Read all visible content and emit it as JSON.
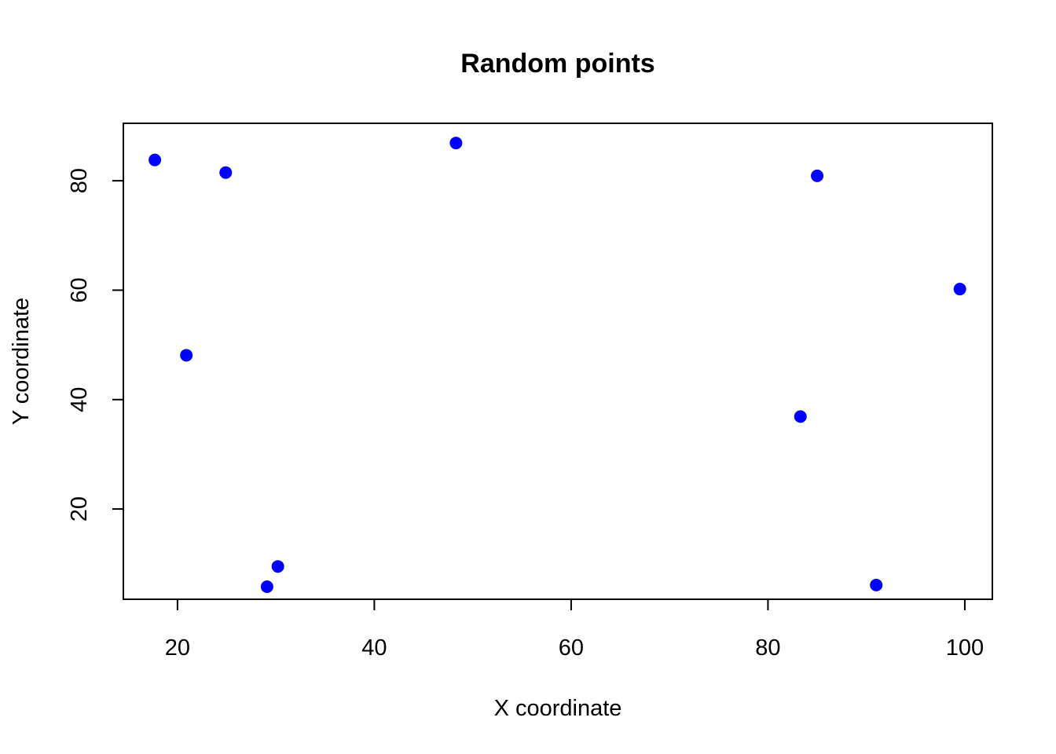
{
  "chart_data": {
    "type": "scatter",
    "title": "Random points",
    "xlabel": "X coordinate",
    "ylabel": "Y coordinate",
    "xlim": [
      14.5,
      102.8
    ],
    "ylim": [
      3.5,
      90.5
    ],
    "xticks": [
      20,
      40,
      60,
      80,
      100
    ],
    "yticks": [
      20,
      40,
      60,
      80
    ],
    "grid": false,
    "legend": "none",
    "marker_color": "#0000ff",
    "points": [
      {
        "x": 17.7,
        "y": 83.8
      },
      {
        "x": 24.9,
        "y": 81.5
      },
      {
        "x": 20.9,
        "y": 48.1
      },
      {
        "x": 29.1,
        "y": 5.8
      },
      {
        "x": 30.2,
        "y": 9.5
      },
      {
        "x": 48.3,
        "y": 86.9
      },
      {
        "x": 85.0,
        "y": 80.9
      },
      {
        "x": 83.3,
        "y": 36.9
      },
      {
        "x": 91.0,
        "y": 6.1
      },
      {
        "x": 99.5,
        "y": 60.2
      }
    ]
  }
}
